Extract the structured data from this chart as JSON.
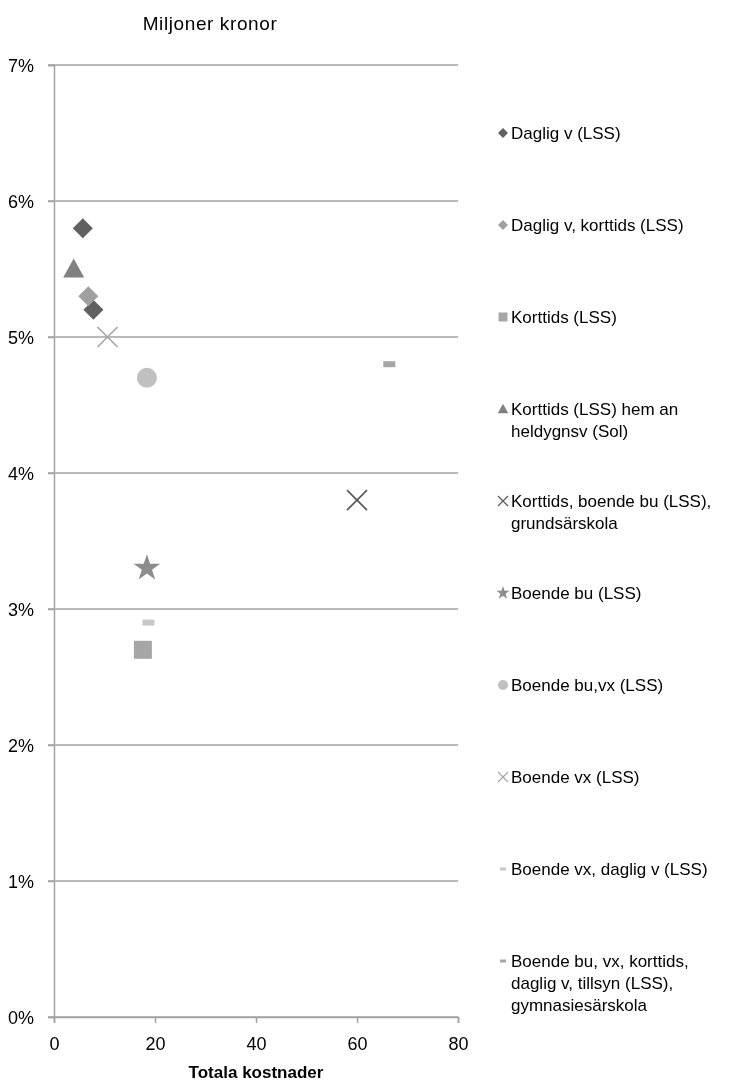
{
  "chart_data": {
    "type": "scatter",
    "title": "Miljoner kronor",
    "xlabel": "Totala kostnader",
    "xlim": [
      0,
      80
    ],
    "xticks": [
      0,
      20,
      40,
      60,
      80
    ],
    "ylim": [
      0,
      7
    ],
    "yticks": [
      {
        "value": 0,
        "label": "0%"
      },
      {
        "value": 1,
        "label": "1%"
      },
      {
        "value": 2,
        "label": "2%"
      },
      {
        "value": 3,
        "label": "3%"
      },
      {
        "value": 4,
        "label": "4%"
      },
      {
        "value": 5,
        "label": "5%"
      },
      {
        "value": 6,
        "label": "6%"
      },
      {
        "value": 7,
        "label": "7%"
      }
    ],
    "grid": "y",
    "legend": "right",
    "series": [
      {
        "name": "Daglig v (LSS)",
        "color": "#606060",
        "marker": "diamond",
        "x": [
          5.7,
          7.8
        ],
        "values": [
          5.8,
          5.2
        ]
      },
      {
        "name": "Daglig v, korttids (LSS)",
        "color": "#a0a0a0",
        "marker": "diamond",
        "x": [
          6.8
        ],
        "values": [
          5.3
        ]
      },
      {
        "name": "Korttids (LSS)",
        "color": "#a6a6a6",
        "marker": "square",
        "x": [
          17.6
        ],
        "values": [
          2.7
        ]
      },
      {
        "name": "Korttids (LSS) hem an heldygnsv (Sol)",
        "color": "#808080",
        "marker": "triangle",
        "x": [
          3.9
        ],
        "values": [
          5.5
        ]
      },
      {
        "name": "Korttids, boende bu (LSS), grundsärskola",
        "color": "#595959",
        "marker": "cross",
        "x": [
          60
        ],
        "values": [
          3.8
        ]
      },
      {
        "name": "Boende bu (LSS)",
        "color": "#8c8c8c",
        "marker": "star",
        "x": [
          18.4
        ],
        "values": [
          3.3
        ]
      },
      {
        "name": "Boende bu,vx (LSS)",
        "color": "#c0c0c0",
        "marker": "circle",
        "x": [
          18.4
        ],
        "values": [
          4.7
        ]
      },
      {
        "name": "Boende vx (LSS)",
        "color": "#a6a6a6",
        "marker": "cross",
        "x": [
          10.6
        ],
        "values": [
          5.0
        ]
      },
      {
        "name": "Boende vx, daglig v (LSS)",
        "color": "#c8c8c8",
        "x": [
          18.7
        ],
        "values": [
          2.9
        ]
      },
      {
        "name": "Boende bu, vx, korttids, daglig v, tillsyn (LSS), gymnasiesärskola",
        "color": "#a6a6a6",
        "x": [
          66.4
        ],
        "values": [
          4.8
        ]
      }
    ]
  }
}
